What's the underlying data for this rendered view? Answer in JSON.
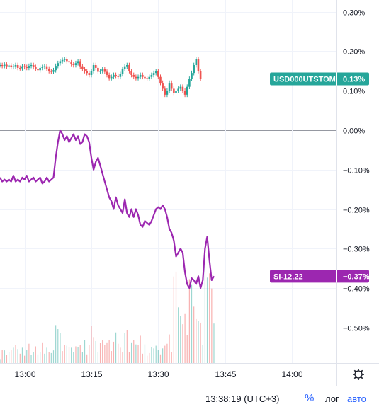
{
  "chart_data": {
    "type": "line",
    "y_axis": {
      "unit": "%",
      "ticks": [
        "0.30%",
        "0.20%",
        "0.10%",
        "0.00%",
        "−0.10%",
        "−0.20%",
        "−0.30%",
        "−0.40%",
        "−0.50%"
      ],
      "tick_values": [
        0.3,
        0.2,
        0.1,
        0.0,
        -0.1,
        -0.2,
        -0.3,
        -0.4,
        -0.5
      ],
      "range": [
        -0.59,
        0.33
      ],
      "zero_line": 0.0
    },
    "x_axis": {
      "ticks": [
        "13:00",
        "13:15",
        "13:30",
        "13:45",
        "14:00"
      ],
      "tick_minutes": [
        0,
        15,
        30,
        45,
        60
      ],
      "range_minutes": [
        -5.5,
        70
      ]
    },
    "grid": true,
    "series": [
      {
        "name": "USD000UTSTOM",
        "style": "candles",
        "color_up": "#26a69a",
        "color_down": "#ef5350",
        "label": "USD000UTSTOM",
        "last_value_label": "0.13%",
        "last_value": 0.13,
        "values": [
          [
            -5.5,
            0.165
          ],
          [
            -5.0,
            0.163
          ],
          [
            -4.5,
            0.166
          ],
          [
            -4.0,
            0.162
          ],
          [
            -3.5,
            0.164
          ],
          [
            -3.0,
            0.16
          ],
          [
            -2.5,
            0.162
          ],
          [
            -2.0,
            0.165
          ],
          [
            -1.5,
            0.158
          ],
          [
            -1.0,
            0.157
          ],
          [
            -0.5,
            0.162
          ],
          [
            0.0,
            0.16
          ],
          [
            0.5,
            0.158
          ],
          [
            1.0,
            0.163
          ],
          [
            1.5,
            0.165
          ],
          [
            2.0,
            0.16
          ],
          [
            2.5,
            0.155
          ],
          [
            3.0,
            0.152
          ],
          [
            3.5,
            0.158
          ],
          [
            4.0,
            0.16
          ],
          [
            4.5,
            0.162
          ],
          [
            5.0,
            0.156
          ],
          [
            5.5,
            0.15
          ],
          [
            6.0,
            0.148
          ],
          [
            6.5,
            0.152
          ],
          [
            7.0,
            0.163
          ],
          [
            7.5,
            0.17
          ],
          [
            8.0,
            0.175
          ],
          [
            8.5,
            0.178
          ],
          [
            9.0,
            0.18
          ],
          [
            9.5,
            0.175
          ],
          [
            10.0,
            0.172
          ],
          [
            10.5,
            0.168
          ],
          [
            11.0,
            0.165
          ],
          [
            11.5,
            0.17
          ],
          [
            12.0,
            0.175
          ],
          [
            12.5,
            0.162
          ],
          [
            13.0,
            0.155
          ],
          [
            13.5,
            0.15
          ],
          [
            14.0,
            0.145
          ],
          [
            14.5,
            0.14
          ],
          [
            15.0,
            0.15
          ],
          [
            15.5,
            0.165
          ],
          [
            16.0,
            0.158
          ],
          [
            16.5,
            0.148
          ],
          [
            17.0,
            0.15
          ],
          [
            17.5,
            0.155
          ],
          [
            18.0,
            0.148
          ],
          [
            18.5,
            0.14
          ],
          [
            19.0,
            0.132
          ],
          [
            19.5,
            0.135
          ],
          [
            20.0,
            0.14
          ],
          [
            20.5,
            0.138
          ],
          [
            21.0,
            0.135
          ],
          [
            21.5,
            0.142
          ],
          [
            22.0,
            0.155
          ],
          [
            22.5,
            0.162
          ],
          [
            23.0,
            0.165
          ],
          [
            23.5,
            0.15
          ],
          [
            24.0,
            0.14
          ],
          [
            24.5,
            0.135
          ],
          [
            25.0,
            0.132
          ],
          [
            25.5,
            0.135
          ],
          [
            26.0,
            0.14
          ],
          [
            26.5,
            0.135
          ],
          [
            27.0,
            0.132
          ],
          [
            27.5,
            0.13
          ],
          [
            28.0,
            0.135
          ],
          [
            28.5,
            0.14
          ],
          [
            29.0,
            0.145
          ],
          [
            29.5,
            0.15
          ],
          [
            30.0,
            0.135
          ],
          [
            30.5,
            0.12
          ],
          [
            31.0,
            0.105
          ],
          [
            31.5,
            0.09
          ],
          [
            32.0,
            0.1
          ],
          [
            32.5,
            0.12
          ],
          [
            33.0,
            0.105
          ],
          [
            33.5,
            0.095
          ],
          [
            34.0,
            0.1
          ],
          [
            34.5,
            0.105
          ],
          [
            35.0,
            0.11
          ],
          [
            35.5,
            0.1
          ],
          [
            36.0,
            0.09
          ],
          [
            36.5,
            0.11
          ],
          [
            37.0,
            0.13
          ],
          [
            37.5,
            0.145
          ],
          [
            38.0,
            0.165
          ],
          [
            38.5,
            0.18
          ],
          [
            39.0,
            0.15
          ],
          [
            39.5,
            0.13
          ]
        ]
      },
      {
        "name": "SI-12.22",
        "style": "line",
        "color": "#9c27b0",
        "label": "SI-12.22",
        "last_value_label": "−0.37%",
        "last_value": -0.37,
        "values": [
          [
            -5.5,
            -0.12
          ],
          [
            -5.0,
            -0.13
          ],
          [
            -4.5,
            -0.125
          ],
          [
            -4.0,
            -0.13
          ],
          [
            -3.5,
            -0.125
          ],
          [
            -3.0,
            -0.13
          ],
          [
            -2.5,
            -0.115
          ],
          [
            -2.0,
            -0.13
          ],
          [
            -1.5,
            -0.125
          ],
          [
            -1.0,
            -0.13
          ],
          [
            -0.5,
            -0.12
          ],
          [
            0.0,
            -0.125
          ],
          [
            0.5,
            -0.115
          ],
          [
            1.0,
            -0.13
          ],
          [
            1.5,
            -0.125
          ],
          [
            2.0,
            -0.12
          ],
          [
            2.5,
            -0.13
          ],
          [
            3.0,
            -0.125
          ],
          [
            3.5,
            -0.12
          ],
          [
            4.0,
            -0.135
          ],
          [
            4.5,
            -0.13
          ],
          [
            5.0,
            -0.12
          ],
          [
            5.5,
            -0.13
          ],
          [
            6.0,
            -0.125
          ],
          [
            6.5,
            -0.12
          ],
          [
            7.0,
            -0.07
          ],
          [
            7.5,
            -0.03
          ],
          [
            8.0,
            0.0
          ],
          [
            8.5,
            -0.01
          ],
          [
            9.0,
            -0.025
          ],
          [
            9.5,
            -0.015
          ],
          [
            10.0,
            -0.03
          ],
          [
            10.5,
            -0.02
          ],
          [
            11.0,
            -0.01
          ],
          [
            11.5,
            -0.025
          ],
          [
            12.0,
            -0.015
          ],
          [
            12.5,
            -0.035
          ],
          [
            13.0,
            -0.03
          ],
          [
            13.5,
            -0.01
          ],
          [
            14.0,
            -0.015
          ],
          [
            14.5,
            -0.03
          ],
          [
            15.0,
            -0.07
          ],
          [
            15.5,
            -0.1
          ],
          [
            16.0,
            -0.08
          ],
          [
            16.5,
            -0.07
          ],
          [
            17.0,
            -0.09
          ],
          [
            17.5,
            -0.11
          ],
          [
            18.0,
            -0.13
          ],
          [
            18.5,
            -0.15
          ],
          [
            19.0,
            -0.17
          ],
          [
            19.5,
            -0.18
          ],
          [
            20.0,
            -0.2
          ],
          [
            20.5,
            -0.17
          ],
          [
            21.0,
            -0.19
          ],
          [
            21.5,
            -0.2
          ],
          [
            22.0,
            -0.21
          ],
          [
            22.5,
            -0.175
          ],
          [
            23.0,
            -0.21
          ],
          [
            23.5,
            -0.22
          ],
          [
            24.0,
            -0.2
          ],
          [
            24.5,
            -0.22
          ],
          [
            25.0,
            -0.2
          ],
          [
            25.5,
            -0.215
          ],
          [
            26.0,
            -0.24
          ],
          [
            26.5,
            -0.245
          ],
          [
            27.0,
            -0.23
          ],
          [
            27.5,
            -0.235
          ],
          [
            28.0,
            -0.24
          ],
          [
            28.5,
            -0.23
          ],
          [
            29.0,
            -0.215
          ],
          [
            29.5,
            -0.2
          ],
          [
            30.0,
            -0.195
          ],
          [
            30.5,
            -0.2
          ],
          [
            31.0,
            -0.19
          ],
          [
            31.5,
            -0.2
          ],
          [
            32.0,
            -0.22
          ],
          [
            32.5,
            -0.25
          ],
          [
            33.0,
            -0.26
          ],
          [
            33.5,
            -0.28
          ],
          [
            34.0,
            -0.32
          ],
          [
            34.5,
            -0.31
          ],
          [
            35.0,
            -0.3
          ],
          [
            35.5,
            -0.31
          ],
          [
            36.0,
            -0.36
          ],
          [
            36.5,
            -0.39
          ],
          [
            37.0,
            -0.4
          ],
          [
            37.5,
            -0.375
          ],
          [
            38.0,
            -0.38
          ],
          [
            38.5,
            -0.39
          ],
          [
            39.0,
            -0.37
          ],
          [
            39.5,
            -0.4
          ],
          [
            40.0,
            -0.38
          ],
          [
            40.5,
            -0.3
          ],
          [
            41.0,
            -0.27
          ],
          [
            41.5,
            -0.33
          ],
          [
            42.0,
            -0.38
          ],
          [
            42.5,
            -0.37
          ]
        ]
      }
    ],
    "volume": {
      "colors": [
        "#26a69a",
        "#ef5350"
      ],
      "max_fraction": 0.55
    },
    "footer": {
      "time": "13:38:19 (UTC+3)",
      "percent_toggle": "%",
      "log_toggle": "лог",
      "auto_toggle": "авто"
    },
    "icons": {
      "settings": "gear-icon"
    },
    "colors": {
      "grid": "#f0f3fa",
      "axis_border": "#e0e3eb",
      "usd_label": "#26a69a",
      "si_label": "#9c27b0",
      "zero_line": "#9598a1"
    }
  }
}
